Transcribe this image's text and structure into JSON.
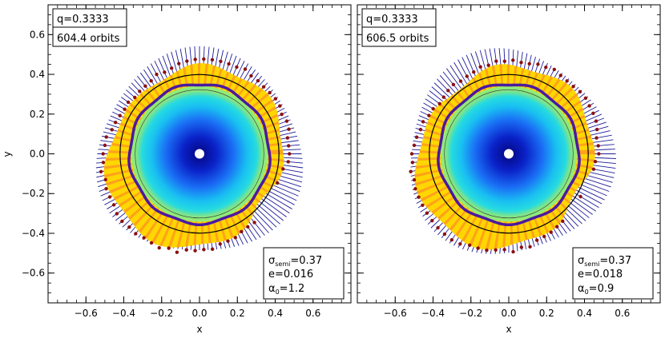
{
  "chart_data": [
    {
      "type": "scatter",
      "title": "",
      "xlabel": "x",
      "ylabel": "y",
      "xlim": [
        -0.8,
        0.8
      ],
      "ylim": [
        -0.75,
        0.75
      ],
      "xticks": [
        -0.6,
        -0.4,
        -0.2,
        0.0,
        0.2,
        0.4,
        0.6
      ],
      "yticks": [
        -0.6,
        -0.4,
        -0.2,
        0.0,
        0.2,
        0.4,
        0.6
      ],
      "xtick_labels": [
        "−0.6",
        "−0.4",
        "−0.2",
        "0.0",
        "0.2",
        "0.4",
        "0.6"
      ],
      "ytick_labels": [
        "−0.6",
        "−0.4",
        "−0.2",
        "0.0",
        "0.2",
        "0.4",
        "0.6"
      ],
      "labels_top": [
        "q=0.3333",
        "604.4 orbits"
      ],
      "labels_bottom": [
        {
          "sym": "σ",
          "sub": "semi",
          "rest": "=0.37"
        },
        {
          "sym": "e",
          "sub": "",
          "rest": "=0.016"
        },
        {
          "sym": "α",
          "sub": "0",
          "rest": "=1.2"
        }
      ],
      "reference_circle_radius": 0.42,
      "disc_radius": 0.36,
      "center": [
        0.0,
        0.0
      ]
    },
    {
      "type": "scatter",
      "title": "",
      "xlabel": "x",
      "ylabel": "",
      "xlim": [
        -0.8,
        0.8
      ],
      "ylim": [
        -0.75,
        0.75
      ],
      "xticks": [
        -0.6,
        -0.4,
        -0.2,
        0.0,
        0.2,
        0.4,
        0.6
      ],
      "yticks": [],
      "xtick_labels": [
        "−0.6",
        "−0.4",
        "−0.2",
        "0.0",
        "0.2",
        "0.4",
        "0.6"
      ],
      "ytick_labels": [],
      "labels_top": [
        "q=0.3333",
        "606.5 orbits"
      ],
      "labels_bottom": [
        {
          "sym": "σ",
          "sub": "semi",
          "rest": "=0.37"
        },
        {
          "sym": "e",
          "sub": "",
          "rest": "=0.018"
        },
        {
          "sym": "α",
          "sub": "0",
          "rest": "=0.9"
        }
      ],
      "reference_circle_radius": 0.42,
      "disc_radius": 0.36,
      "center": [
        0.0,
        0.0
      ]
    }
  ],
  "colors": {
    "frame": "#000000",
    "spokes": "#1b1b9a",
    "dots": "#8b1010",
    "yellow": "#ffd700",
    "orange": "#ffa21a",
    "green": "#7fe07a",
    "cyan": "#19d2f0",
    "blue": "#1040e0",
    "deep": "#050a9a",
    "purple": "#4a1aa0"
  }
}
